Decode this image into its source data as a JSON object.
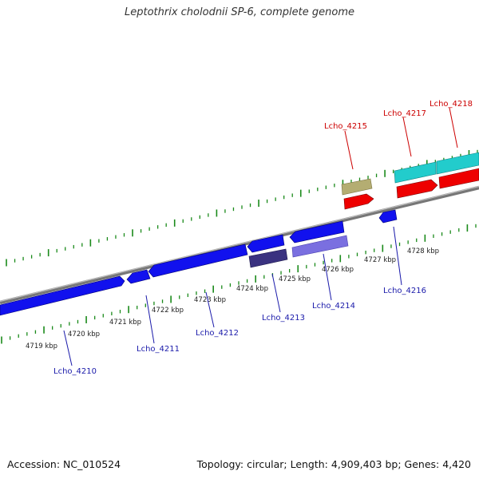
{
  "title": "Leptothrix cholodnii SP-6, complete genome",
  "footer": {
    "accession": "Accession: NC_010524",
    "summary": "Topology: circular; Length: 4,909,403 bp; Genes: 4,420"
  },
  "colors": {
    "backbone": "#888888",
    "tick": "#1a8a1a",
    "label_top": "#cc0000",
    "label_bottom": "#1a1aaa",
    "gene_blue": "#1111ee",
    "gene_red": "#ee0000",
    "gene_cyan": "#22cccc",
    "gene_olive": "#b4ad72",
    "gene_navy": "#3a3280",
    "gene_lavender": "#7a6fe0"
  },
  "kbp_labels": [
    "4719 kbp",
    "4720 kbp",
    "4721 kbp",
    "4722 kbp",
    "4723 kbp",
    "4724 kbp",
    "4725 kbp",
    "4726 kbp",
    "4727 kbp",
    "4728 kbp"
  ],
  "gene_labels_top": [
    "Lcho_4215",
    "Lcho_4217",
    "Lcho_4218"
  ],
  "gene_labels_bottom": [
    "Lcho_4210",
    "Lcho_4211",
    "Lcho_4212",
    "Lcho_4213",
    "Lcho_4214",
    "Lcho_4216"
  ]
}
